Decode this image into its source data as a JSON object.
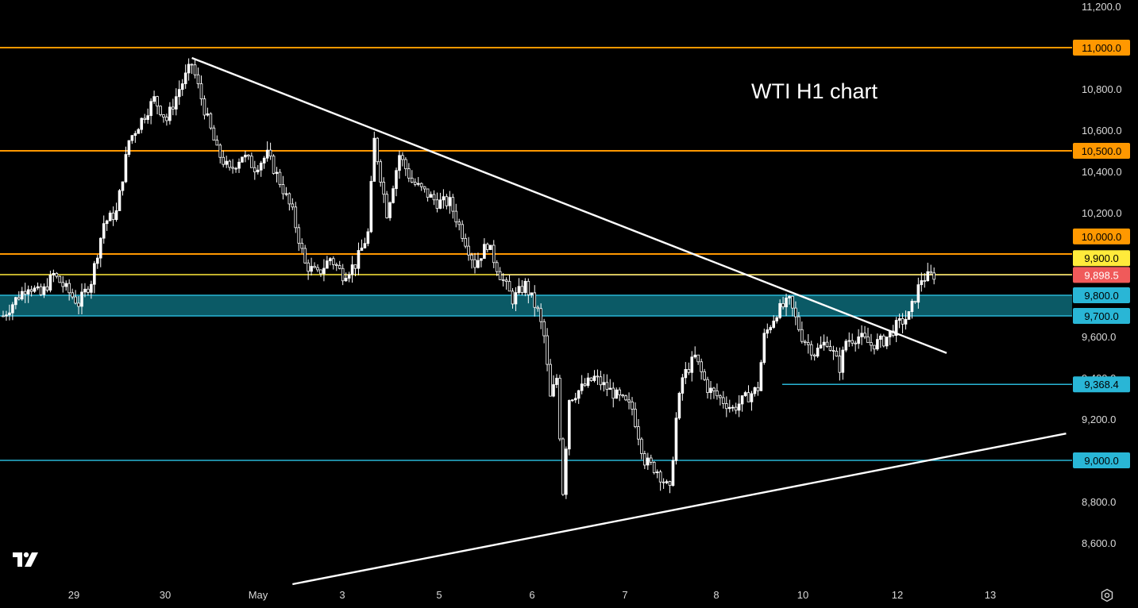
{
  "chart_data": {
    "type": "candlestick",
    "title": "WTI H1 chart",
    "timeframe": "H1",
    "ylim": [
      8400,
      11250
    ],
    "y_ticks": [
      "11,200.0",
      "10,800.0",
      "10,600.0",
      "10,400.0",
      "10,200.0",
      "9,600.0",
      "9,400.0",
      "9,200.0",
      "8,800.0",
      "8,600.0"
    ],
    "x_ticks": [
      "29",
      "30",
      "May",
      "3",
      "5",
      "6",
      "7",
      "8",
      "10",
      "12",
      "13"
    ],
    "current_price": {
      "label": "9,898.5",
      "value": 9898.5,
      "color": "#f05a5a"
    },
    "horizontal_levels": [
      {
        "label": "11,000.0",
        "value": 11000,
        "color": "#ff9800"
      },
      {
        "label": "10,500.0",
        "value": 10500,
        "color": "#ff9800"
      },
      {
        "label": "10,000.0",
        "value": 10000,
        "color": "#ff9800"
      },
      {
        "label": "9,900.0",
        "value": 9900,
        "color": "#ffeb3b"
      },
      {
        "label": "9,800.0",
        "value": 9800,
        "color": "#29b6d6"
      },
      {
        "label": "9,700.0",
        "value": 9700,
        "color": "#29b6d6"
      },
      {
        "label": "9,368.4",
        "value": 9368.4,
        "color": "#29b6d6"
      },
      {
        "label": "9,000.0",
        "value": 9000,
        "color": "#29b6d6"
      }
    ],
    "zone": {
      "from": 9700,
      "to": 9800,
      "color": "#0b5a66"
    },
    "price_path": [
      [
        0,
        9700
      ],
      [
        4,
        9780
      ],
      [
        8,
        9850
      ],
      [
        12,
        9800
      ],
      [
        16,
        9900
      ],
      [
        20,
        9830
      ],
      [
        24,
        9760
      ],
      [
        28,
        9870
      ],
      [
        32,
        10150
      ],
      [
        36,
        10200
      ],
      [
        40,
        10550
      ],
      [
        44,
        10650
      ],
      [
        48,
        10750
      ],
      [
        52,
        10650
      ],
      [
        56,
        10800
      ],
      [
        60,
        10920
      ],
      [
        64,
        10700
      ],
      [
        68,
        10500
      ],
      [
        72,
        10400
      ],
      [
        76,
        10480
      ],
      [
        80,
        10420
      ],
      [
        84,
        10480
      ],
      [
        88,
        10350
      ],
      [
        92,
        10200
      ],
      [
        96,
        9950
      ],
      [
        100,
        9900
      ],
      [
        104,
        9980
      ],
      [
        108,
        9900
      ],
      [
        112,
        9950
      ],
      [
        116,
        10100
      ],
      [
        118,
        10550
      ],
      [
        122,
        10200
      ],
      [
        126,
        10480
      ],
      [
        130,
        10350
      ],
      [
        134,
        10300
      ],
      [
        138,
        10250
      ],
      [
        142,
        10250
      ],
      [
        146,
        10100
      ],
      [
        150,
        9950
      ],
      [
        154,
        10050
      ],
      [
        158,
        9900
      ],
      [
        162,
        9780
      ],
      [
        166,
        9850
      ],
      [
        170,
        9720
      ],
      [
        172,
        9600
      ],
      [
        174,
        9300
      ],
      [
        176,
        9400
      ],
      [
        178,
        8850
      ],
      [
        180,
        9300
      ],
      [
        184,
        9350
      ],
      [
        188,
        9400
      ],
      [
        192,
        9350
      ],
      [
        196,
        9300
      ],
      [
        200,
        9250
      ],
      [
        204,
        9000
      ],
      [
        208,
        8950
      ],
      [
        212,
        8850
      ],
      [
        214,
        9200
      ],
      [
        216,
        9400
      ],
      [
        220,
        9500
      ],
      [
        224,
        9350
      ],
      [
        228,
        9300
      ],
      [
        232,
        9250
      ],
      [
        236,
        9300
      ],
      [
        240,
        9350
      ],
      [
        242,
        9600
      ],
      [
        246,
        9720
      ],
      [
        250,
        9770
      ],
      [
        254,
        9600
      ],
      [
        258,
        9520
      ],
      [
        262,
        9580
      ],
      [
        266,
        9450
      ],
      [
        268,
        9580
      ],
      [
        272,
        9600
      ],
      [
        276,
        9560
      ],
      [
        280,
        9580
      ],
      [
        284,
        9650
      ],
      [
        288,
        9700
      ],
      [
        292,
        9880
      ],
      [
        296,
        9898.5
      ]
    ],
    "trendlines": [
      {
        "from": [
          60,
          10950
        ],
        "to": [
          300,
          9520
        ],
        "color": "#ffffff"
      },
      {
        "from": [
          92,
          8400
        ],
        "to": [
          338,
          9130
        ],
        "color": "#ffffff"
      }
    ]
  },
  "icons": {
    "logo": "tradingview-logo-icon",
    "settings": "settings-gear-icon"
  }
}
